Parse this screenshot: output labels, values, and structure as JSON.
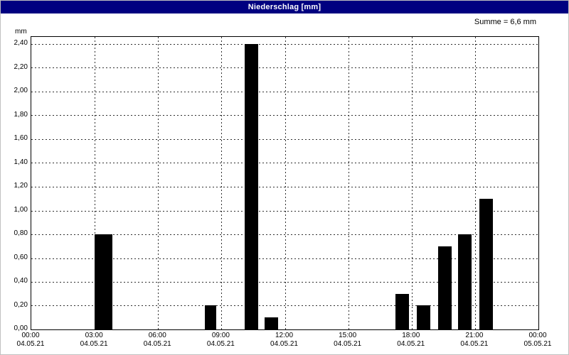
{
  "title_bar": {
    "title": "Niederschlag [mm]",
    "bg_color": "#000080",
    "text_color": "#ffffff"
  },
  "chart_data": {
    "type": "bar",
    "title": "Niederschlag [mm]",
    "sum_label": "Summe = 6,6 mm",
    "ylabel": "mm",
    "ylim": [
      0,
      2.4
    ],
    "ytick_step": 0.2,
    "ytick_labels": [
      "0,00",
      "0,20",
      "0,40",
      "0,60",
      "0,80",
      "1,00",
      "1,20",
      "1,40",
      "1,60",
      "1,80",
      "2,00",
      "2,20",
      "2,40"
    ],
    "xlim_hours": [
      0,
      24
    ],
    "xtick_step_hours": 3,
    "xticks": [
      {
        "hour": 0,
        "time": "00:00",
        "date": "04.05.21"
      },
      {
        "hour": 3,
        "time": "03:00",
        "date": "04.05.21"
      },
      {
        "hour": 6,
        "time": "06:00",
        "date": "04.05.21"
      },
      {
        "hour": 9,
        "time": "09:00",
        "date": "04.05.21"
      },
      {
        "hour": 12,
        "time": "12:00",
        "date": "04.05.21"
      },
      {
        "hour": 15,
        "time": "15:00",
        "date": "04.05.21"
      },
      {
        "hour": 18,
        "time": "18:00",
        "date": "04.05.21"
      },
      {
        "hour": 21,
        "time": "21:00",
        "date": "04.05.21"
      },
      {
        "hour": 24,
        "time": "00:00",
        "date": "05.05.21"
      }
    ],
    "grid": "dashed",
    "grid_color": "#303030",
    "bar_color": "#000000",
    "bars": [
      {
        "start_hour": 3.0,
        "width_hours": 0.85,
        "value": 0.8
      },
      {
        "start_hour": 8.2,
        "width_hours": 0.55,
        "value": 0.2
      },
      {
        "start_hour": 10.1,
        "width_hours": 0.65,
        "value": 2.4
      },
      {
        "start_hour": 11.05,
        "width_hours": 0.65,
        "value": 0.1
      },
      {
        "start_hour": 17.25,
        "width_hours": 0.65,
        "value": 0.3
      },
      {
        "start_hour": 18.25,
        "width_hours": 0.65,
        "value": 0.2
      },
      {
        "start_hour": 19.25,
        "width_hours": 0.65,
        "value": 0.7
      },
      {
        "start_hour": 20.2,
        "width_hours": 0.65,
        "value": 0.8
      },
      {
        "start_hour": 21.2,
        "width_hours": 0.65,
        "value": 1.1
      }
    ]
  }
}
